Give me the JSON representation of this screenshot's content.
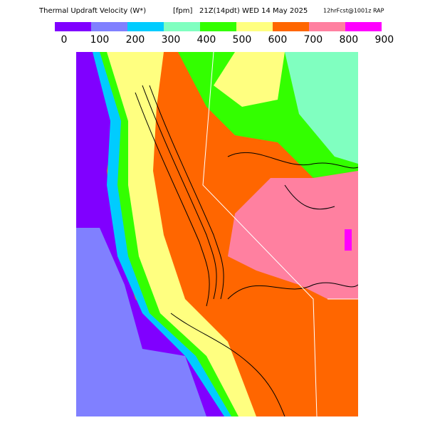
{
  "header": {
    "title": "Thermal Updraft Velocity (W*)",
    "units": "[fpm]",
    "valid": "21Z(14pdt)",
    "date": "WED 14 May 2025",
    "forecast": "12hrFcst@1001z RAP"
  },
  "legend": {
    "colors": [
      "#8000ff",
      "#8080ff",
      "#00ccff",
      "#80ffc0",
      "#33ff00",
      "#ffff80",
      "#ff6600",
      "#ff80a0",
      "#ff00ff"
    ],
    "ticks": [
      0,
      100,
      200,
      300,
      400,
      500,
      600,
      700,
      800,
      900
    ]
  }
}
